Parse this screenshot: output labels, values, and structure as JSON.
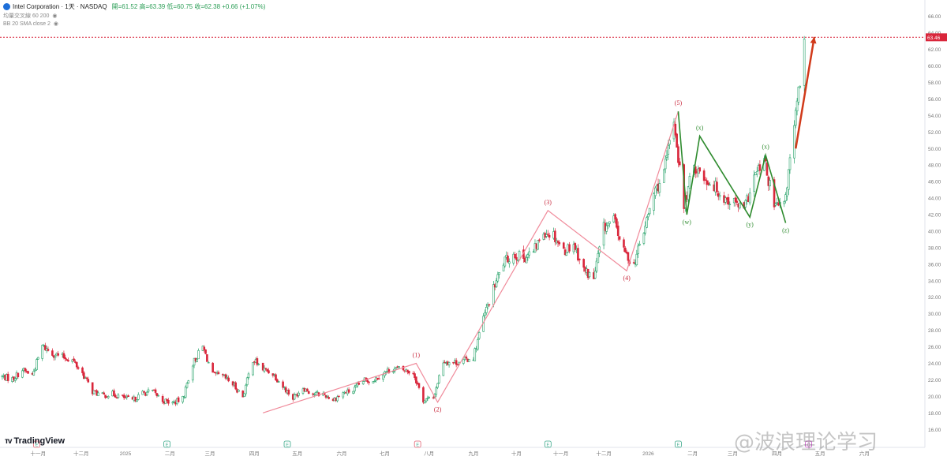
{
  "header": {
    "title": "Intel Corporation · 1天 · NASDAQ",
    "ohlc": "開=61.52  高=63.39  低=60.75  收=62.38  +0.66 (+1.07%)",
    "indicator1": "均量交叉線 60 200",
    "indicator2": "BB 20 SMA close 2"
  },
  "branding": {
    "logo": "TradingView",
    "watermark": "@波浪理论学习"
  },
  "colors": {
    "up": "#26a269",
    "down": "#d9263b",
    "wave_main": "#f08a9a",
    "wave_corr": "#2e8b2e",
    "arrow": "#d13a1a",
    "price_line": "#d9263b"
  },
  "chart_data": {
    "type": "candlestick",
    "price_axis": [
      "66.00",
      "64.00",
      "62.00",
      "60.00",
      "58.00",
      "56.00",
      "54.00",
      "52.00",
      "50.00",
      "48.00",
      "46.00",
      "44.00",
      "42.00",
      "40.00",
      "38.00",
      "36.00",
      "34.00",
      "32.00",
      "30.00",
      "28.00",
      "26.00",
      "24.00",
      "22.00",
      "20.00",
      "18.00",
      "16.00"
    ],
    "current_price": "63.46",
    "time_axis": [
      "十一月",
      "十二月",
      "2025",
      "二月",
      "三月",
      "四月",
      "五月",
      "六月",
      "七月",
      "八月",
      "九月",
      "十月",
      "十一月",
      "十二月",
      "2026",
      "二月",
      "三月",
      "四月",
      "五月",
      "六月"
    ],
    "event_markers": [
      "E",
      "E",
      "E",
      "E",
      "E",
      "E",
      "D"
    ],
    "price_ylim": [
      14.5,
      67.5
    ],
    "main_wave": [
      {
        "x": "2025-04-07",
        "y": 18.0,
        "label": ""
      },
      {
        "x": "2025-07-23",
        "y": 24.0,
        "label": "(1)"
      },
      {
        "x": "2025-08-07",
        "y": 19.3,
        "label": "(2)"
      },
      {
        "x": "2025-10-23",
        "y": 42.5,
        "label": "(3)"
      },
      {
        "x": "2025-12-17",
        "y": 35.2,
        "label": "(4)"
      },
      {
        "x": "2026-01-22",
        "y": 54.5,
        "label": "(5)"
      }
    ],
    "corrective_wave": [
      {
        "x": "2026-01-22",
        "y": 54.5,
        "label": ""
      },
      {
        "x": "2026-01-28",
        "y": 42.0,
        "label": "(w)"
      },
      {
        "x": "2026-02-06",
        "y": 51.5,
        "label": "(x)"
      },
      {
        "x": "2026-03-13",
        "y": 41.7,
        "label": "(y)"
      },
      {
        "x": "2026-03-24",
        "y": 49.2,
        "label": "(x)"
      },
      {
        "x": "2026-04-07",
        "y": 41.0,
        "label": "(z)"
      }
    ],
    "projection": [
      {
        "x": "2026-04-14",
        "y": 50.0
      },
      {
        "x": "2026-04-27",
        "y": 63.5
      }
    ],
    "price_path": [
      [
        "2024-10-07",
        22.4
      ],
      [
        "2024-10-14",
        22.1
      ],
      [
        "2024-10-21",
        23.2
      ],
      [
        "2024-10-28",
        22.6
      ],
      [
        "2024-11-04",
        26.1
      ],
      [
        "2024-11-11",
        25.2
      ],
      [
        "2024-11-18",
        24.8
      ],
      [
        "2024-11-25",
        24.4
      ],
      [
        "2024-12-02",
        22.8
      ],
      [
        "2024-12-09",
        20.6
      ],
      [
        "2024-12-16",
        20.1
      ],
      [
        "2024-12-23",
        20.3
      ],
      [
        "2024-12-30",
        19.9
      ],
      [
        "2025-01-06",
        19.5
      ],
      [
        "2025-01-13",
        20.4
      ],
      [
        "2025-01-20",
        20.6
      ],
      [
        "2025-01-27",
        19.5
      ],
      [
        "2025-02-03",
        19.2
      ],
      [
        "2025-02-10",
        19.7
      ],
      [
        "2025-02-17",
        24.0
      ],
      [
        "2025-02-24",
        26.0
      ],
      [
        "2025-03-03",
        22.6
      ],
      [
        "2025-03-10",
        22.4
      ],
      [
        "2025-03-17",
        21.5
      ],
      [
        "2025-03-24",
        20.0
      ],
      [
        "2025-03-31",
        24.5
      ],
      [
        "2025-04-07",
        23.3
      ],
      [
        "2025-04-14",
        22.8
      ],
      [
        "2025-04-21",
        21.2
      ],
      [
        "2025-04-28",
        19.8
      ],
      [
        "2025-05-05",
        21.1
      ],
      [
        "2025-05-12",
        20.3
      ],
      [
        "2025-05-19",
        20.3
      ],
      [
        "2025-05-26",
        19.6
      ],
      [
        "2025-06-02",
        20.4
      ],
      [
        "2025-06-09",
        20.7
      ],
      [
        "2025-06-16",
        21.9
      ],
      [
        "2025-06-23",
        22.0
      ],
      [
        "2025-06-30",
        22.8
      ],
      [
        "2025-07-07",
        23.4
      ],
      [
        "2025-07-14",
        23.2
      ],
      [
        "2025-07-21",
        22.9
      ],
      [
        "2025-07-28",
        19.5
      ],
      [
        "2025-08-04",
        19.8
      ],
      [
        "2025-08-11",
        24.3
      ],
      [
        "2025-08-18",
        24.1
      ],
      [
        "2025-08-25",
        24.3
      ],
      [
        "2025-09-01",
        24.8
      ],
      [
        "2025-09-08",
        29.5
      ],
      [
        "2025-09-15",
        33.0
      ],
      [
        "2025-09-22",
        36.2
      ],
      [
        "2025-09-29",
        37.2
      ],
      [
        "2025-10-06",
        36.8
      ],
      [
        "2025-10-13",
        37.5
      ],
      [
        "2025-10-20",
        40.0
      ],
      [
        "2025-10-27",
        39.6
      ],
      [
        "2025-11-03",
        37.6
      ],
      [
        "2025-11-10",
        38.5
      ],
      [
        "2025-11-17",
        35.3
      ],
      [
        "2025-11-24",
        34.3
      ],
      [
        "2025-12-01",
        40.4
      ],
      [
        "2025-12-08",
        41.4
      ],
      [
        "2025-12-15",
        37.5
      ],
      [
        "2025-12-22",
        36.0
      ],
      [
        "2025-12-29",
        40.0
      ],
      [
        "2026-01-05",
        44.5
      ],
      [
        "2026-01-12",
        47.0
      ],
      [
        "2026-01-19",
        53.5
      ],
      [
        "2026-01-26",
        43.0
      ],
      [
        "2026-02-02",
        48.0
      ],
      [
        "2026-02-09",
        46.5
      ],
      [
        "2026-02-16",
        45.5
      ],
      [
        "2026-02-23",
        44.0
      ],
      [
        "2026-03-02",
        43.5
      ],
      [
        "2026-03-09",
        42.5
      ],
      [
        "2026-03-16",
        46.5
      ],
      [
        "2026-03-23",
        48.5
      ],
      [
        "2026-03-30",
        43.0
      ],
      [
        "2026-04-06",
        43.0
      ],
      [
        "2026-04-13",
        52.5
      ],
      [
        "2026-04-20",
        62.4
      ]
    ]
  }
}
